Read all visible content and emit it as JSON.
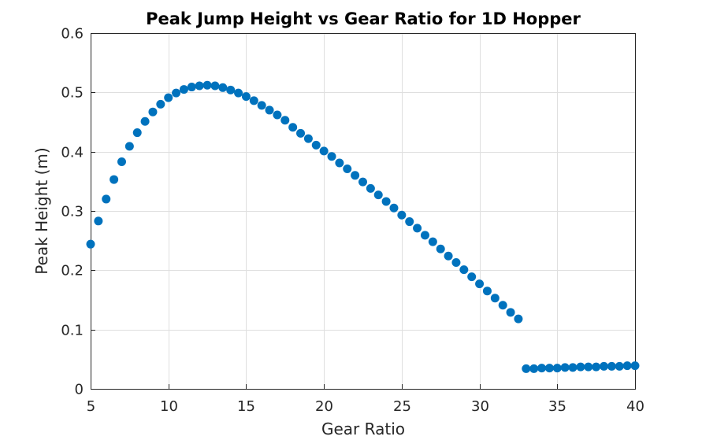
{
  "chart_data": {
    "type": "scatter",
    "title": "Peak Jump Height vs Gear Ratio for 1D Hopper",
    "xlabel": "Gear Ratio",
    "ylabel": "Peak Height (m)",
    "xlim": [
      5,
      40
    ],
    "ylim": [
      0,
      0.6
    ],
    "xticks": [
      "5",
      "10",
      "15",
      "20",
      "25",
      "30",
      "35",
      "40"
    ],
    "yticks": [
      "0",
      "0.1",
      "0.2",
      "0.3",
      "0.4",
      "0.5",
      "0.6"
    ],
    "grid": true,
    "marker_color": "#0072BD",
    "series": [
      {
        "x": [
          5,
          5.5,
          6,
          6.5,
          7,
          7.5,
          8,
          8.5,
          9,
          9.5,
          10,
          10.5,
          11,
          11.5,
          12,
          12.5,
          13,
          13.5,
          14,
          14.5,
          15,
          15.5,
          16,
          16.5,
          17,
          17.5,
          18,
          18.5,
          19,
          19.5,
          20,
          20.5,
          21,
          21.5,
          22,
          22.5,
          23,
          23.5,
          24,
          24.5,
          25,
          25.5,
          26,
          26.5,
          27,
          27.5,
          28,
          28.5,
          29,
          29.5,
          30,
          30.5,
          31,
          31.5,
          32,
          32.5,
          33,
          33.5,
          34,
          34.5,
          35,
          35.5,
          36,
          36.5,
          37,
          37.5,
          38,
          38.5,
          39,
          39.5,
          40
        ],
        "y": [
          0.244,
          0.283,
          0.32,
          0.353,
          0.383,
          0.409,
          0.432,
          0.451,
          0.467,
          0.48,
          0.491,
          0.499,
          0.505,
          0.509,
          0.511,
          0.512,
          0.511,
          0.508,
          0.504,
          0.499,
          0.493,
          0.486,
          0.478,
          0.47,
          0.462,
          0.453,
          0.441,
          0.431,
          0.422,
          0.411,
          0.401,
          0.392,
          0.381,
          0.371,
          0.36,
          0.349,
          0.338,
          0.327,
          0.316,
          0.305,
          0.293,
          0.282,
          0.271,
          0.259,
          0.248,
          0.236,
          0.224,
          0.213,
          0.201,
          0.189,
          0.177,
          0.165,
          0.153,
          0.141,
          0.129,
          0.118,
          0.034,
          0.034,
          0.035,
          0.035,
          0.035,
          0.036,
          0.036,
          0.037,
          0.037,
          0.037,
          0.038,
          0.038,
          0.038,
          0.039,
          0.039
        ]
      }
    ]
  }
}
